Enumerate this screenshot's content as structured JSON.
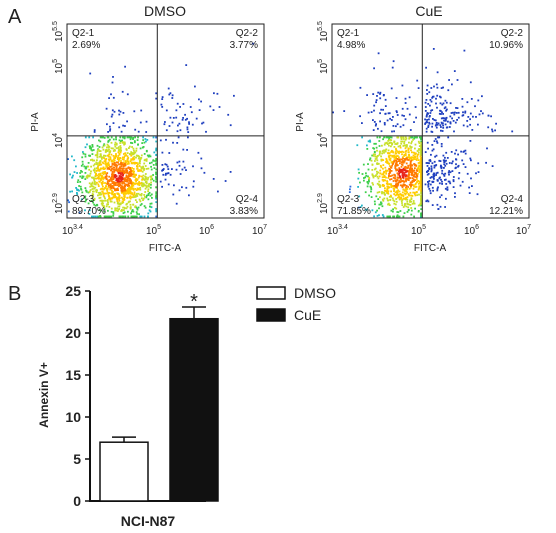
{
  "panel_labels": {
    "a": "A",
    "b": "B"
  },
  "chart_data": [
    {
      "type": "scatter",
      "title": "DMSO",
      "xlabel": "FITC-A",
      "ylabel": "PI-A",
      "x_ticks": [
        {
          "base": "10",
          "exp": "3.4"
        },
        {
          "base": "10",
          "exp": "5"
        },
        {
          "base": "10",
          "exp": "6"
        },
        {
          "base": "10",
          "exp": "7"
        }
      ],
      "y_ticks": [
        {
          "base": "10",
          "exp": "2.9"
        },
        {
          "base": "10",
          "exp": "4"
        },
        {
          "base": "10",
          "exp": "5"
        },
        {
          "base": "10",
          "exp": "5.5"
        }
      ],
      "quadrants": [
        {
          "name": "Q2-1",
          "value": "2.69%",
          "percent": 2.69
        },
        {
          "name": "Q2-2",
          "value": "3.77%",
          "percent": 3.77
        },
        {
          "name": "Q2-3",
          "value": "89.70%",
          "percent": 89.7
        },
        {
          "name": "Q2-4",
          "value": "3.83%",
          "percent": 3.83
        }
      ],
      "gate_x_log": 5.05,
      "gate_y_log": 4.0,
      "xlim_log": [
        3.4,
        7
      ],
      "ylim_log": [
        2.9,
        5.5
      ],
      "x_scale": "log",
      "y_scale": "log"
    },
    {
      "type": "scatter",
      "title": "CuE",
      "xlabel": "FITC-A",
      "ylabel": "PI-A",
      "x_ticks": [
        {
          "base": "10",
          "exp": "3.4"
        },
        {
          "base": "10",
          "exp": "5"
        },
        {
          "base": "10",
          "exp": "6"
        },
        {
          "base": "10",
          "exp": "7"
        }
      ],
      "y_ticks": [
        {
          "base": "10",
          "exp": "2.9"
        },
        {
          "base": "10",
          "exp": "4"
        },
        {
          "base": "10",
          "exp": "5"
        },
        {
          "base": "10",
          "exp": "5.5"
        }
      ],
      "quadrants": [
        {
          "name": "Q2-1",
          "value": "4.98%",
          "percent": 4.98
        },
        {
          "name": "Q2-2",
          "value": "10.96%",
          "percent": 10.96
        },
        {
          "name": "Q2-3",
          "value": "71.85%",
          "percent": 71.85
        },
        {
          "name": "Q2-4",
          "value": "12.21%",
          "percent": 12.21
        }
      ],
      "gate_x_log": 5.05,
      "gate_y_log": 4.0,
      "xlim_log": [
        3.4,
        7
      ],
      "ylim_log": [
        2.9,
        5.5
      ],
      "x_scale": "log",
      "y_scale": "log"
    },
    {
      "type": "bar",
      "categories": [
        "NCI-N87"
      ],
      "xlabel": "NCI-N87",
      "ylabel": "Annexin V+",
      "ylim": [
        0,
        25
      ],
      "y_ticks": [
        "0",
        "5",
        "10",
        "15",
        "20",
        "25"
      ],
      "series": [
        {
          "name": "DMSO",
          "values": [
            7.0
          ],
          "error": [
            0.6
          ],
          "fill": "#ffffff"
        },
        {
          "name": "CuE",
          "values": [
            21.7
          ],
          "error": [
            1.4
          ],
          "fill": "#111111"
        }
      ],
      "annotations": [
        {
          "series": "CuE",
          "text": "*"
        }
      ],
      "legend": "right"
    }
  ]
}
